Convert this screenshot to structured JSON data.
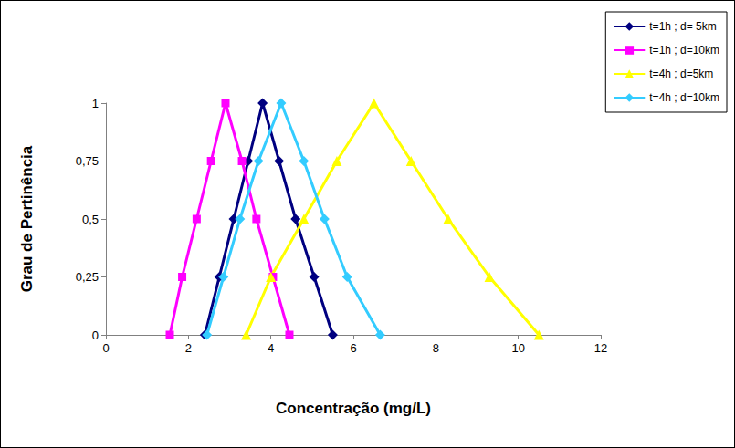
{
  "chart_data": {
    "type": "line",
    "x_label": "Concentração (mg/L)",
    "y_label": "Grau de Pertinência",
    "xlim": [
      0,
      12
    ],
    "xticks": [
      0,
      2,
      4,
      6,
      8,
      10,
      12
    ],
    "ylim": [
      0,
      1
    ],
    "yticks": [
      0,
      {
        "value": 0.25,
        "label": "0,25"
      },
      {
        "value": 0.5,
        "label": "0,5"
      },
      {
        "value": 0.75,
        "label": "0,75"
      },
      1
    ],
    "grid": false,
    "legend": "top-right",
    "series": [
      {
        "name": "t=1h ; d= 5km",
        "color": "#000080",
        "marker": "diamond",
        "x": [
          2.4,
          2.75,
          3.1,
          3.45,
          3.8,
          4.2,
          4.6,
          5.05,
          5.5
        ],
        "values": [
          0,
          0.25,
          0.5,
          0.75,
          1,
          0.75,
          0.5,
          0.25,
          0
        ]
      },
      {
        "name": "t=1h ; d=10km",
        "color": "#ff00ff",
        "marker": "square",
        "x": [
          1.55,
          1.85,
          2.2,
          2.55,
          2.9,
          3.3,
          3.65,
          4.05,
          4.45
        ],
        "values": [
          0,
          0.25,
          0.5,
          0.75,
          1,
          0.75,
          0.5,
          0.25,
          0
        ]
      },
      {
        "name": "t=4h ; d=5km",
        "color": "#ffff00",
        "marker": "triangle",
        "x": [
          3.4,
          4.0,
          4.8,
          5.6,
          6.5,
          7.4,
          8.3,
          9.3,
          10.5
        ],
        "values": [
          0,
          0.25,
          0.5,
          0.75,
          1,
          0.75,
          0.5,
          0.25,
          0
        ]
      },
      {
        "name": "t=4h ; d=10km",
        "color": "#33ccff",
        "marker": "diamond",
        "x": [
          2.45,
          2.85,
          3.25,
          3.7,
          4.25,
          4.8,
          5.3,
          5.85,
          6.65
        ],
        "values": [
          0,
          0.25,
          0.5,
          0.75,
          1,
          0.75,
          0.5,
          0.25,
          0
        ]
      }
    ]
  }
}
